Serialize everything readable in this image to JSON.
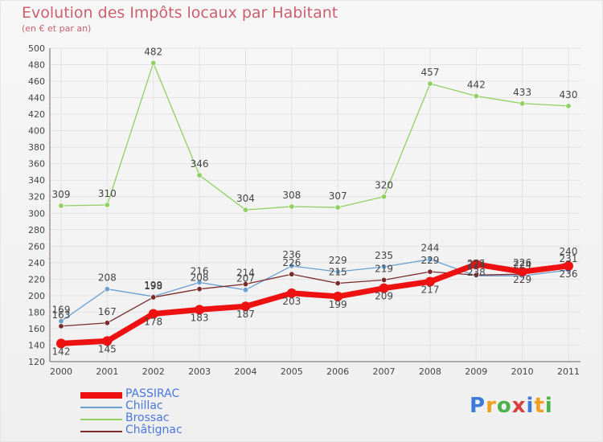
{
  "chart_data": {
    "type": "line",
    "title": "Evolution des Impôts locaux par Habitant",
    "subtitle": "(en € et par an)",
    "xlabel": "",
    "ylabel": "",
    "ylim": [
      120,
      500
    ],
    "ytick_step": 20,
    "categories": [
      "2000",
      "2001",
      "2002",
      "2003",
      "2004",
      "2005",
      "2006",
      "2007",
      "2008",
      "2009",
      "2010",
      "2011"
    ],
    "series": [
      {
        "name": "PASSIRAC",
        "color": "#ee1111",
        "values": [
          142,
          145,
          178,
          183,
          187,
          203,
          199,
          209,
          217,
          238,
          229,
          236
        ]
      },
      {
        "name": "Chillac",
        "color": "#6aa0d0",
        "values": [
          169,
          208,
          199,
          216,
          207,
          236,
          229,
          235,
          244,
          224,
          224,
          231
        ]
      },
      {
        "name": "Brossac",
        "color": "#8fd060",
        "values": [
          309,
          310,
          482,
          346,
          304,
          308,
          307,
          320,
          457,
          442,
          433,
          430
        ]
      },
      {
        "name": "Châtignac",
        "color": "#7a2a2a",
        "values": [
          163,
          167,
          198,
          208,
          214,
          226,
          215,
          219,
          229,
          225,
          226,
          240
        ]
      }
    ]
  },
  "legend": {
    "items": [
      "PASSIRAC",
      "Chillac",
      "Brossac",
      "Châtignac"
    ]
  },
  "branding": {
    "logo_text": "Proxiti"
  }
}
